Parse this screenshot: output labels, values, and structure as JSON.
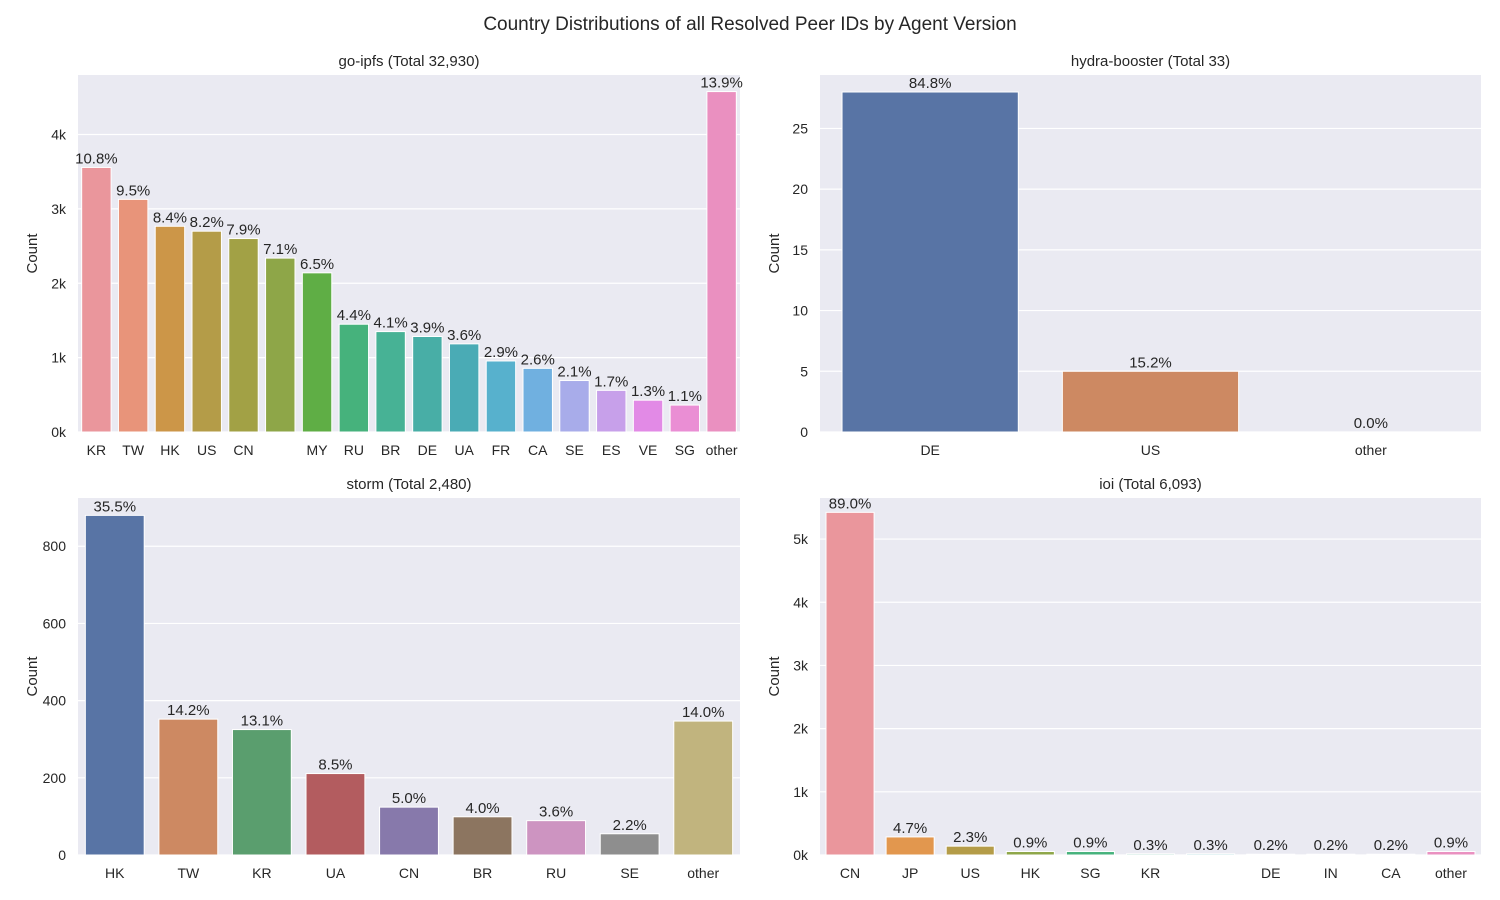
{
  "page": {
    "suptitle": "Country Distributions of all Resolved Peer IDs by Agent Version"
  },
  "colors": {
    "plot_background": "#eaeaf2",
    "grid": "#ffffff",
    "text": "#262626"
  },
  "chart_data": [
    {
      "type": "bar",
      "title": "go-ipfs (Total 32,930)",
      "ylabel": "Count",
      "ylim": [
        0,
        4800
      ],
      "yticks": [
        0,
        1000,
        2000,
        3000,
        4000
      ],
      "ytick_labels": [
        "0k",
        "1k",
        "2k",
        "3k",
        "4k"
      ],
      "categories": [
        "KR",
        "TW",
        "HK",
        "US",
        "CN",
        "",
        "MY",
        "RU",
        "BR",
        "DE",
        "UA",
        "FR",
        "CA",
        "SE",
        "ES",
        "VE",
        "SG",
        "other"
      ],
      "values": [
        3557,
        3128,
        2766,
        2700,
        2601,
        2338,
        2140,
        1449,
        1350,
        1284,
        1185,
        955,
        856,
        692,
        560,
        428,
        362,
        4577
      ],
      "labels": [
        "10.8%",
        "9.5%",
        "8.4%",
        "8.2%",
        "7.9%",
        "7.1%",
        "6.5%",
        "4.4%",
        "4.1%",
        "3.9%",
        "3.6%",
        "2.9%",
        "2.6%",
        "2.1%",
        "1.7%",
        "1.3%",
        "1.1%",
        "13.9%"
      ],
      "colors": [
        "#ea969c",
        "#e8947a",
        "#cc9648",
        "#b49c48",
        "#a2a145",
        "#8ea648",
        "#5fae45",
        "#46b27c",
        "#47b295",
        "#48aea6",
        "#4aabb5",
        "#57b1cd",
        "#70b0e0",
        "#a8acea",
        "#c7a0ea",
        "#e28ae6",
        "#ea8ed4",
        "#ea90c0"
      ]
    },
    {
      "type": "bar",
      "title": "hydra-booster (Total 33)",
      "ylabel": "Count",
      "ylim": [
        0,
        29.4
      ],
      "yticks": [
        0,
        5,
        10,
        15,
        20,
        25
      ],
      "ytick_labels": [
        "0",
        "5",
        "10",
        "15",
        "20",
        "25"
      ],
      "categories": [
        "DE",
        "US",
        "other"
      ],
      "values": [
        28,
        5,
        0
      ],
      "labels": [
        "84.8%",
        "15.2%",
        "0.0%"
      ],
      "colors": [
        "#5874a5",
        "#cd8962",
        "#5a9e6e"
      ]
    },
    {
      "type": "bar",
      "title": "storm (Total 2,480)",
      "ylabel": "Count",
      "ylim": [
        0,
        925
      ],
      "yticks": [
        0,
        200,
        400,
        600,
        800
      ],
      "ytick_labels": [
        "0",
        "200",
        "400",
        "600",
        "800"
      ],
      "categories": [
        "HK",
        "TW",
        "KR",
        "UA",
        "CN",
        "BR",
        "RU",
        "SE",
        "other"
      ],
      "values": [
        880,
        352,
        325,
        211,
        124,
        99,
        89,
        55,
        347
      ],
      "labels": [
        "35.5%",
        "14.2%",
        "13.1%",
        "8.5%",
        "5.0%",
        "4.0%",
        "3.6%",
        "2.2%",
        "14.0%"
      ],
      "colors": [
        "#5874a5",
        "#cd8962",
        "#5a9e6e",
        "#b35c5f",
        "#8779ab",
        "#8c7560",
        "#cd94c1",
        "#8e8e8e",
        "#c1b47e"
      ]
    },
    {
      "type": "bar",
      "title": "ioi (Total 6,093)",
      "ylabel": "Count",
      "ylim": [
        0,
        5650
      ],
      "yticks": [
        0,
        1000,
        2000,
        3000,
        4000,
        5000
      ],
      "ytick_labels": [
        "0k",
        "1k",
        "2k",
        "3k",
        "4k",
        "5k"
      ],
      "categories": [
        "CN",
        "JP",
        "US",
        "HK",
        "SG",
        "KR",
        "",
        "DE",
        "IN",
        "CA",
        "other"
      ],
      "values": [
        5423,
        286,
        140,
        55,
        55,
        18,
        18,
        12,
        12,
        12,
        55
      ],
      "labels": [
        "89.0%",
        "4.7%",
        "2.3%",
        "0.9%",
        "0.9%",
        "0.3%",
        "0.3%",
        "0.2%",
        "0.2%",
        "0.2%",
        "0.9%"
      ],
      "colors": [
        "#ea969c",
        "#e2974e",
        "#b49c48",
        "#8ea648",
        "#46b27c",
        "#47b295",
        "#4aabb5",
        "#70b0e0",
        "#a8acea",
        "#e28ae6",
        "#ea90c0"
      ]
    }
  ]
}
